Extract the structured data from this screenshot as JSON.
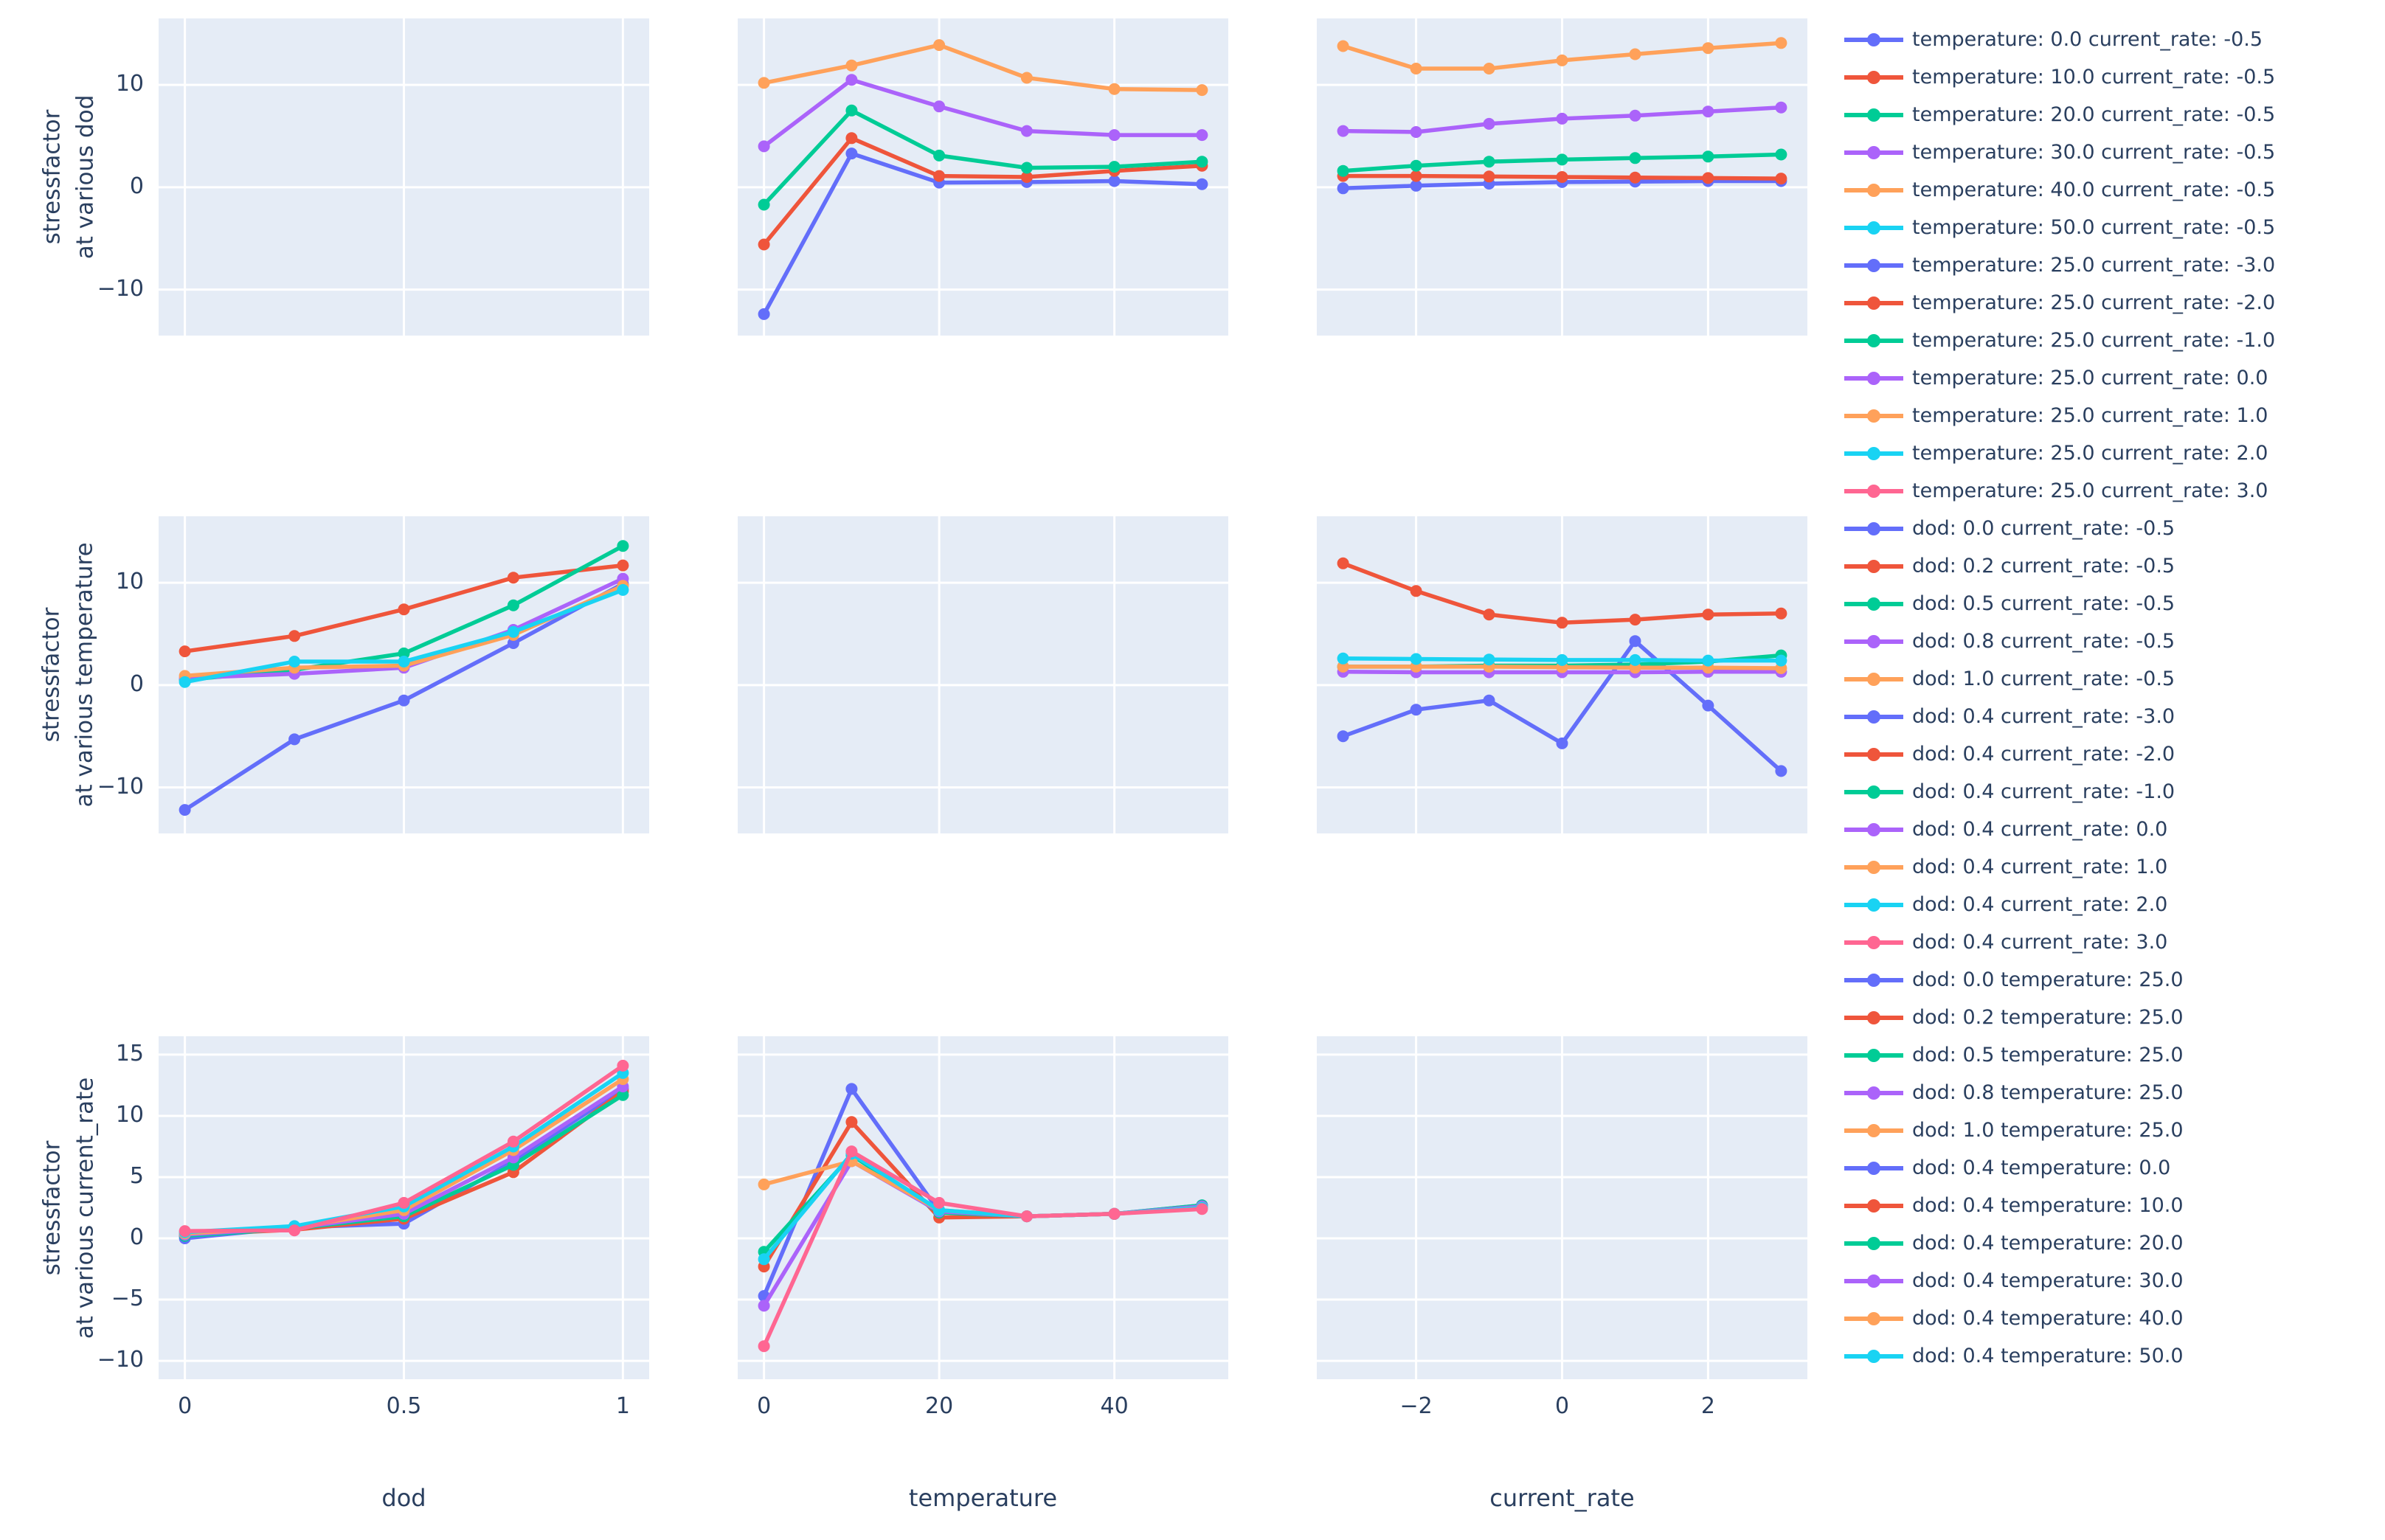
{
  "colors": {
    "blue": "#636EFA",
    "red": "#EF553B",
    "green": "#00CC96",
    "purple": "#AB63FA",
    "orange": "#FFA15A",
    "cyan": "#19D3F3",
    "pink": "#FF6692",
    "plot_bg": "#E5ECF6",
    "grid_line": "#FFFFFF",
    "text": "#2A3F5F"
  },
  "chart_data": {
    "type": "line",
    "description": "3x3 grid of line subplots with markers; diagonal cells are empty; shared x axes per column and y ticks on left column only; legend on right lists all 36 traces",
    "row_axes": [
      {
        "title_lines": [
          "stressfactor",
          "at various dod"
        ],
        "yticks": [
          10,
          0,
          -10
        ],
        "yrange": [
          -14.5,
          16.5
        ]
      },
      {
        "title_lines": [
          "stressfactor",
          "at various temperature"
        ],
        "yticks": [
          10,
          0,
          -10
        ],
        "yrange": [
          -14.5,
          16.5
        ]
      },
      {
        "title_lines": [
          "stressfactor",
          "at various current_rate"
        ],
        "yticks": [
          15,
          10,
          5,
          0,
          -5,
          -10
        ],
        "yrange": [
          -11.5,
          16.5
        ]
      }
    ],
    "col_axes": [
      {
        "label": "dod",
        "ticks": [
          0,
          0.5,
          1
        ],
        "range": [
          -0.06,
          1.06
        ]
      },
      {
        "label": "temperature",
        "ticks": [
          0,
          20,
          40
        ],
        "range": [
          -3,
          53
        ]
      },
      {
        "label": "current_rate",
        "ticks": [
          -2,
          0,
          2
        ],
        "range": [
          -3.36,
          3.36
        ]
      }
    ],
    "subplots": {
      "r1c2": {
        "row": 0,
        "col": 1,
        "x": [
          0,
          10,
          20,
          30,
          40,
          50
        ],
        "series": [
          {
            "label": "dod: 0.0 current_rate: -0.5",
            "color": "blue",
            "y": [
              -12.4,
              3.3,
              0.45,
              0.5,
              0.6,
              0.3
            ]
          },
          {
            "label": "dod: 0.2 current_rate: -0.5",
            "color": "red",
            "y": [
              -5.6,
              4.8,
              1.1,
              1.0,
              1.6,
              2.1
            ]
          },
          {
            "label": "dod: 0.5 current_rate: -0.5",
            "color": "green",
            "y": [
              -1.7,
              7.5,
              3.1,
              1.9,
              2.0,
              2.5
            ]
          },
          {
            "label": "dod: 0.8 current_rate: -0.5",
            "color": "purple",
            "y": [
              4.0,
              10.5,
              7.9,
              5.5,
              5.1,
              5.1
            ]
          },
          {
            "label": "dod: 1.0 current_rate: -0.5",
            "color": "orange",
            "y": [
              10.2,
              11.9,
              13.9,
              10.7,
              9.6,
              9.5
            ]
          }
        ]
      },
      "r1c3": {
        "row": 0,
        "col": 2,
        "x": [
          -3,
          -2,
          -1,
          0,
          1,
          2,
          3
        ],
        "series": [
          {
            "label": "dod: 0.0 temperature: 25.0",
            "color": "blue",
            "y": [
              -0.1,
              0.15,
              0.35,
              0.5,
              0.55,
              0.6,
              0.6
            ]
          },
          {
            "label": "dod: 0.2 temperature: 25.0",
            "color": "red",
            "y": [
              1.1,
              1.1,
              1.05,
              1.0,
              0.95,
              0.9,
              0.85
            ]
          },
          {
            "label": "dod: 0.5 temperature: 25.0",
            "color": "green",
            "y": [
              1.6,
              2.1,
              2.5,
              2.7,
              2.85,
              3.0,
              3.2
            ]
          },
          {
            "label": "dod: 0.8 temperature: 25.0",
            "color": "purple",
            "y": [
              5.5,
              5.4,
              6.2,
              6.7,
              7.0,
              7.4,
              7.8
            ]
          },
          {
            "label": "dod: 1.0 temperature: 25.0",
            "color": "orange",
            "y": [
              13.8,
              11.6,
              11.6,
              12.4,
              13.0,
              13.6,
              14.1
            ]
          }
        ]
      },
      "r2c1": {
        "row": 1,
        "col": 0,
        "x": [
          0,
          0.25,
          0.5,
          0.75,
          1
        ],
        "series": [
          {
            "label": "temperature: 0.0 current_rate: -0.5",
            "color": "blue",
            "y": [
              -12.2,
              -5.3,
              -1.5,
              4.1,
              9.9
            ]
          },
          {
            "label": "temperature: 10.0 current_rate: -0.5",
            "color": "red",
            "y": [
              3.3,
              4.8,
              7.4,
              10.5,
              11.7
            ]
          },
          {
            "label": "temperature: 20.0 current_rate: -0.5",
            "color": "green",
            "y": [
              0.5,
              1.5,
              3.1,
              7.8,
              13.6
            ]
          },
          {
            "label": "temperature: 30.0 current_rate: -0.5",
            "color": "purple",
            "y": [
              0.7,
              1.1,
              1.7,
              5.4,
              10.4
            ]
          },
          {
            "label": "temperature: 40.0 current_rate: -0.5",
            "color": "orange",
            "y": [
              0.9,
              1.7,
              1.9,
              4.9,
              9.7
            ]
          },
          {
            "label": "temperature: 50.0 current_rate: -0.5",
            "color": "cyan",
            "y": [
              0.3,
              2.3,
              2.3,
              5.2,
              9.3
            ]
          }
        ]
      },
      "r2c3": {
        "row": 1,
        "col": 2,
        "x": [
          -3,
          -2,
          -1,
          0,
          1,
          2,
          3
        ],
        "series": [
          {
            "label": "dod: 0.4 temperature: 0.0",
            "color": "blue",
            "y": [
              -5.0,
              -2.4,
              -1.5,
              -5.7,
              4.3,
              -2.0,
              -8.4
            ]
          },
          {
            "label": "dod: 0.4 temperature: 10.0",
            "color": "red",
            "y": [
              11.9,
              9.2,
              6.9,
              6.1,
              6.4,
              6.9,
              7.0
            ]
          },
          {
            "label": "dod: 0.4 temperature: 20.0",
            "color": "green",
            "y": [
              1.8,
              1.8,
              1.9,
              1.9,
              2.0,
              2.3,
              2.9
            ]
          },
          {
            "label": "dod: 0.4 temperature: 30.0",
            "color": "purple",
            "y": [
              1.3,
              1.25,
              1.25,
              1.25,
              1.25,
              1.3,
              1.3
            ]
          },
          {
            "label": "dod: 0.4 temperature: 40.0",
            "color": "orange",
            "y": [
              1.8,
              1.8,
              1.8,
              1.75,
              1.7,
              1.7,
              1.65
            ]
          },
          {
            "label": "dod: 0.4 temperature: 50.0",
            "color": "cyan",
            "y": [
              2.6,
              2.55,
              2.5,
              2.45,
              2.45,
              2.4,
              2.4
            ]
          }
        ]
      },
      "r3c1": {
        "row": 2,
        "col": 0,
        "x": [
          0,
          0.25,
          0.5,
          0.75,
          1
        ],
        "series": [
          {
            "label": "temperature: 25.0 current_rate: -3.0",
            "color": "blue",
            "y": [
              0.0,
              0.9,
              1.2,
              6.3,
              12.2
            ]
          },
          {
            "label": "temperature: 25.0 current_rate: -2.0",
            "color": "red",
            "y": [
              0.3,
              0.7,
              1.6,
              5.4,
              12.0
            ]
          },
          {
            "label": "temperature: 25.0 current_rate: -1.0",
            "color": "green",
            "y": [
              0.2,
              0.8,
              1.8,
              6.0,
              11.7
            ]
          },
          {
            "label": "temperature: 25.0 current_rate: 0.0",
            "color": "purple",
            "y": [
              0.3,
              0.85,
              2.0,
              6.6,
              12.4
            ]
          },
          {
            "label": "temperature: 25.0 current_rate: 1.0",
            "color": "orange",
            "y": [
              0.4,
              0.9,
              2.3,
              7.2,
              13.0
            ]
          },
          {
            "label": "temperature: 25.0 current_rate: 2.0",
            "color": "cyan",
            "y": [
              0.5,
              1.0,
              2.6,
              7.5,
              13.5
            ]
          },
          {
            "label": "temperature: 25.0 current_rate: 3.0",
            "color": "pink",
            "y": [
              0.6,
              0.65,
              2.9,
              7.9,
              14.1
            ]
          }
        ]
      },
      "r3c2": {
        "row": 2,
        "col": 1,
        "x": [
          0,
          10,
          20,
          30,
          40,
          50
        ],
        "series": [
          {
            "label": "dod: 0.4 current_rate: -3.0",
            "color": "blue",
            "y": [
              -4.7,
              12.2,
              2.2,
              1.8,
              2.0,
              2.7
            ]
          },
          {
            "label": "dod: 0.4 current_rate: -2.0",
            "color": "red",
            "y": [
              -2.3,
              9.5,
              1.7,
              1.8,
              2.0,
              2.6
            ]
          },
          {
            "label": "dod: 0.4 current_rate: -1.0",
            "color": "green",
            "y": [
              -1.1,
              6.8,
              2.1,
              1.8,
              2.0,
              2.7
            ]
          },
          {
            "label": "dod: 0.4 current_rate: 0.0",
            "color": "purple",
            "y": [
              -5.5,
              6.3,
              2.2,
              1.8,
              2.0,
              2.6
            ]
          },
          {
            "label": "dod: 0.4 current_rate: 1.0",
            "color": "orange",
            "y": [
              4.4,
              6.3,
              2.3,
              1.8,
              2.0,
              2.5
            ]
          },
          {
            "label": "dod: 0.4 current_rate: 2.0",
            "color": "cyan",
            "y": [
              -1.7,
              6.9,
              2.3,
              1.8,
              2.0,
              2.5
            ]
          },
          {
            "label": "dod: 0.4 current_rate: 3.0",
            "color": "pink",
            "y": [
              -8.8,
              7.1,
              2.9,
              1.8,
              2.0,
              2.4
            ]
          }
        ]
      }
    },
    "empty_cells": [
      {
        "row": 0,
        "col": 0
      },
      {
        "row": 1,
        "col": 1
      },
      {
        "row": 2,
        "col": 2
      }
    ],
    "legend_group_order": [
      "r2c1",
      "r3c1",
      "r1c2",
      "r3c2",
      "r1c3",
      "r2c3"
    ],
    "legend_position": "right"
  }
}
